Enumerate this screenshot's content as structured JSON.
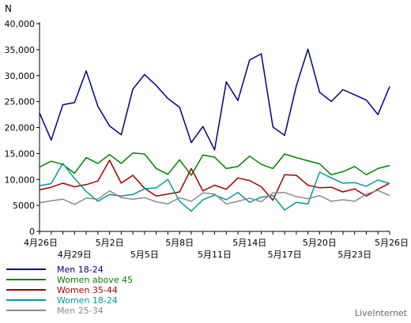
{
  "chart_data": {
    "type": "line",
    "ylabel": "N",
    "ylim": [
      0,
      40000
    ],
    "yticks": [
      0,
      5000,
      10000,
      15000,
      20000,
      25000,
      30000,
      35000,
      40000
    ],
    "ytick_labels": [
      "0",
      "5000",
      "10,000",
      "15,000",
      "20,000",
      "25,000",
      "30,000",
      "35,000",
      "40,000"
    ],
    "x": [
      "4月26日",
      "4月27日",
      "4月28日",
      "4月29日",
      "4月30日",
      "5月1日",
      "5月2日",
      "5月3日",
      "5月4日",
      "5月5日",
      "5月6日",
      "5月7日",
      "5月8日",
      "5月9日",
      "5月10日",
      "5月11日",
      "5月12日",
      "5月13日",
      "5月14日",
      "5月15日",
      "5月16日",
      "5月17日",
      "5月18日",
      "5月19日",
      "5月20日",
      "5月21日",
      "5月22日",
      "5月23日",
      "5月24日",
      "5月25日",
      "5月26日"
    ],
    "xtick_labels_row1": [
      {
        "index": 0,
        "label": "4月26日"
      },
      {
        "index": 6,
        "label": "5月2日"
      },
      {
        "index": 12,
        "label": "5月8日"
      },
      {
        "index": 18,
        "label": "5月14日"
      },
      {
        "index": 24,
        "label": "5月20日"
      },
      {
        "index": 30,
        "label": "5月26日"
      }
    ],
    "xtick_labels_row2": [
      {
        "index": 3,
        "label": "4月29日"
      },
      {
        "index": 9,
        "label": "5月5日"
      },
      {
        "index": 15,
        "label": "5月11日"
      },
      {
        "index": 21,
        "label": "5月17日"
      },
      {
        "index": 27,
        "label": "5月23日"
      }
    ],
    "grid": false,
    "legend_position": "bottom-left",
    "series": [
      {
        "name": "Men 18-24",
        "color": "#00007f",
        "values": [
          22800,
          17600,
          24400,
          24800,
          30900,
          24100,
          20300,
          18600,
          27400,
          30200,
          28100,
          25600,
          23900,
          17100,
          20200,
          15700,
          28800,
          25200,
          33000,
          34200,
          20100,
          18500,
          28000,
          35100,
          26800,
          25000,
          27300,
          26300,
          25300,
          22500,
          27900
        ]
      },
      {
        "name": "Women above 45",
        "color": "#008000",
        "values": [
          12400,
          13500,
          12900,
          11200,
          14200,
          13100,
          14800,
          13100,
          15100,
          14900,
          12100,
          11000,
          13800,
          10800,
          14700,
          14300,
          12100,
          12500,
          14500,
          12900,
          12100,
          14900,
          14200,
          13600,
          13000,
          10900,
          11500,
          12500,
          10900,
          12100,
          12700
        ]
      },
      {
        "name": "Women 35-44",
        "color": "#9f0000",
        "values": [
          8000,
          8500,
          9300,
          8600,
          9000,
          9700,
          13700,
          9300,
          10800,
          8300,
          6800,
          7200,
          7600,
          12100,
          7800,
          8900,
          8100,
          10300,
          9800,
          8600,
          6000,
          10900,
          10800,
          8900,
          8400,
          8500,
          7600,
          8200,
          6800,
          8100,
          9300
        ]
      },
      {
        "name": "Women 18-24",
        "color": "#009a9a",
        "values": [
          8800,
          9200,
          13100,
          10200,
          7700,
          5800,
          7100,
          6800,
          7100,
          8200,
          8400,
          10000,
          5800,
          3900,
          6100,
          7000,
          6100,
          7500,
          5600,
          6600,
          6900,
          4100,
          5600,
          5300,
          11400,
          10300,
          9300,
          9400,
          8700,
          9900,
          9200
        ]
      },
      {
        "name": "Men 25-34",
        "color": "#8a8a8a",
        "values": [
          5500,
          5900,
          6200,
          5200,
          6400,
          6200,
          7800,
          6500,
          6200,
          6500,
          5700,
          5300,
          6500,
          5800,
          7400,
          7200,
          5300,
          5800,
          6400,
          5700,
          7400,
          7500,
          6700,
          6300,
          6900,
          5800,
          6100,
          5800,
          7200,
          7900,
          6900
        ]
      }
    ],
    "watermark": "LiveInternet"
  }
}
